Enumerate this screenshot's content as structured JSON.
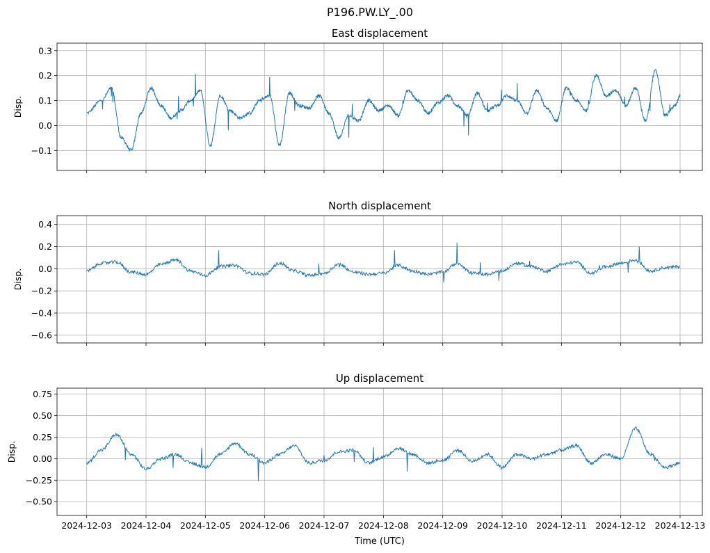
{
  "figure": {
    "suptitle": "P196.PW.LY_.00",
    "xlabel": "Time (UTC)",
    "line_color": "#1f77b4",
    "grid_color": "#b0b0b0"
  },
  "chart_data": [
    {
      "type": "line",
      "title": "East displacement",
      "ylabel": "Disp.",
      "xlabel": "",
      "grid": true,
      "xlim": [
        "2024-12-02T12:00",
        "2024-12-13T09:00"
      ],
      "ylim": [
        -0.18,
        0.33
      ],
      "yticks": [
        -0.1,
        0.0,
        0.1,
        0.2,
        0.3
      ],
      "ytick_labels": [
        "−0.1",
        "0.0",
        "0.1",
        "0.2",
        "0.3"
      ],
      "series": [
        {
          "x": [
            "2024-12-03T00:00",
            "2024-12-03T06:00",
            "2024-12-03T10:00",
            "2024-12-03T14:00",
            "2024-12-03T18:00",
            "2024-12-03T22:00",
            "2024-12-04T02:00",
            "2024-12-04T06:00",
            "2024-12-04T10:00",
            "2024-12-04T14:00",
            "2024-12-04T18:00",
            "2024-12-04T22:00",
            "2024-12-05T02:00",
            "2024-12-05T06:00",
            "2024-12-05T10:00",
            "2024-12-05T14:00",
            "2024-12-05T18:00",
            "2024-12-05T22:00",
            "2024-12-06T02:00",
            "2024-12-06T06:00",
            "2024-12-06T10:00",
            "2024-12-06T14:00",
            "2024-12-06T18:00",
            "2024-12-06T22:00",
            "2024-12-07T02:00",
            "2024-12-07T06:00",
            "2024-12-07T10:00",
            "2024-12-07T14:00",
            "2024-12-07T18:00",
            "2024-12-07T22:00",
            "2024-12-08T02:00",
            "2024-12-08T06:00",
            "2024-12-08T10:00",
            "2024-12-08T14:00",
            "2024-12-08T18:00",
            "2024-12-08T22:00",
            "2024-12-09T02:00",
            "2024-12-09T06:00",
            "2024-12-09T10:00",
            "2024-12-09T14:00",
            "2024-12-09T18:00",
            "2024-12-09T22:00",
            "2024-12-10T02:00",
            "2024-12-10T06:00",
            "2024-12-10T10:00",
            "2024-12-10T14:00",
            "2024-12-10T18:00",
            "2024-12-10T22:00",
            "2024-12-11T02:00",
            "2024-12-11T06:00",
            "2024-12-11T10:00",
            "2024-12-11T14:00",
            "2024-12-11T18:00",
            "2024-12-11T22:00",
            "2024-12-12T02:00",
            "2024-12-12T06:00",
            "2024-12-12T10:00",
            "2024-12-12T14:00",
            "2024-12-12T18:00",
            "2024-12-12T22:00",
            "2024-12-13T00:00"
          ],
          "y": [
            0.05,
            0.1,
            0.15,
            -0.05,
            -0.1,
            0.05,
            0.15,
            0.08,
            0.03,
            0.06,
            0.1,
            0.14,
            -0.08,
            0.12,
            0.06,
            0.03,
            0.05,
            0.1,
            0.12,
            -0.08,
            0.13,
            0.08,
            0.07,
            0.12,
            0.05,
            -0.05,
            0.04,
            0.02,
            0.1,
            0.06,
            0.08,
            0.04,
            0.14,
            0.1,
            0.05,
            0.09,
            0.12,
            0.08,
            0.04,
            0.13,
            0.06,
            0.08,
            0.12,
            0.1,
            0.05,
            0.14,
            0.07,
            0.02,
            0.15,
            0.1,
            0.06,
            0.2,
            0.12,
            0.14,
            0.08,
            0.15,
            0.02,
            0.22,
            0.04,
            0.08,
            0.12
          ]
        }
      ]
    },
    {
      "type": "line",
      "title": "North displacement",
      "ylabel": "Disp.",
      "xlabel": "",
      "grid": true,
      "xlim": [
        "2024-12-02T12:00",
        "2024-12-13T09:00"
      ],
      "ylim": [
        -0.67,
        0.48
      ],
      "yticks": [
        -0.6,
        -0.4,
        -0.2,
        0.0,
        0.2,
        0.4
      ],
      "ytick_labels": [
        "−0.6",
        "−0.4",
        "−0.2",
        "0.0",
        "0.2",
        "0.4"
      ],
      "series": [
        {
          "x": [
            "2024-12-03T00:00",
            "2024-12-03T06:00",
            "2024-12-03T12:00",
            "2024-12-03T18:00",
            "2024-12-04T00:00",
            "2024-12-04T06:00",
            "2024-12-04T12:00",
            "2024-12-04T18:00",
            "2024-12-05T00:00",
            "2024-12-05T06:00",
            "2024-12-05T12:00",
            "2024-12-05T18:00",
            "2024-12-06T00:00",
            "2024-12-06T06:00",
            "2024-12-06T12:00",
            "2024-12-06T18:00",
            "2024-12-07T00:00",
            "2024-12-07T06:00",
            "2024-12-07T12:00",
            "2024-12-07T18:00",
            "2024-12-08T00:00",
            "2024-12-08T06:00",
            "2024-12-08T12:00",
            "2024-12-08T18:00",
            "2024-12-09T00:00",
            "2024-12-09T06:00",
            "2024-12-09T12:00",
            "2024-12-09T18:00",
            "2024-12-10T00:00",
            "2024-12-10T06:00",
            "2024-12-10T12:00",
            "2024-12-10T18:00",
            "2024-12-11T00:00",
            "2024-12-11T06:00",
            "2024-12-11T12:00",
            "2024-12-11T18:00",
            "2024-12-12T00:00",
            "2024-12-12T06:00",
            "2024-12-12T12:00",
            "2024-12-12T18:00",
            "2024-12-13T00:00"
          ],
          "y": [
            -0.02,
            0.05,
            0.06,
            -0.03,
            -0.05,
            0.04,
            0.08,
            -0.02,
            -0.06,
            0.02,
            0.03,
            -0.04,
            -0.05,
            0.05,
            -0.02,
            -0.06,
            -0.04,
            0.04,
            -0.03,
            -0.05,
            -0.04,
            0.03,
            -0.02,
            -0.05,
            -0.03,
            0.05,
            -0.04,
            -0.05,
            -0.02,
            0.05,
            0.02,
            -0.02,
            0.04,
            0.06,
            -0.04,
            0.02,
            0.05,
            0.08,
            -0.02,
            0.01,
            0.02
          ]
        }
      ]
    },
    {
      "type": "line",
      "title": "Up displacement",
      "ylabel": "Disp.",
      "xlabel": "Time (UTC)",
      "grid": true,
      "xlim": [
        "2024-12-02T12:00",
        "2024-12-13T09:00"
      ],
      "ylim": [
        -0.66,
        0.82
      ],
      "yticks": [
        -0.5,
        -0.25,
        0.0,
        0.25,
        0.5,
        0.75
      ],
      "ytick_labels": [
        "−0.50",
        "−0.25",
        "0.00",
        "0.25",
        "0.50",
        "0.75"
      ],
      "xticks": [
        "2024-12-03",
        "2024-12-04",
        "2024-12-05",
        "2024-12-06",
        "2024-12-07",
        "2024-12-08",
        "2024-12-09",
        "2024-12-10",
        "2024-12-11",
        "2024-12-12",
        "2024-12-13"
      ],
      "series": [
        {
          "x": [
            "2024-12-03T00:00",
            "2024-12-03T06:00",
            "2024-12-03T12:00",
            "2024-12-03T18:00",
            "2024-12-04T00:00",
            "2024-12-04T06:00",
            "2024-12-04T12:00",
            "2024-12-04T18:00",
            "2024-12-05T00:00",
            "2024-12-05T06:00",
            "2024-12-05T12:00",
            "2024-12-05T18:00",
            "2024-12-06T00:00",
            "2024-12-06T06:00",
            "2024-12-06T12:00",
            "2024-12-06T18:00",
            "2024-12-07T00:00",
            "2024-12-07T06:00",
            "2024-12-07T12:00",
            "2024-12-07T18:00",
            "2024-12-08T00:00",
            "2024-12-08T06:00",
            "2024-12-08T12:00",
            "2024-12-08T18:00",
            "2024-12-09T00:00",
            "2024-12-09T06:00",
            "2024-12-09T12:00",
            "2024-12-09T18:00",
            "2024-12-10T00:00",
            "2024-12-10T06:00",
            "2024-12-10T12:00",
            "2024-12-10T18:00",
            "2024-12-11T00:00",
            "2024-12-11T06:00",
            "2024-12-11T12:00",
            "2024-12-11T18:00",
            "2024-12-12T00:00",
            "2024-12-12T06:00",
            "2024-12-12T12:00",
            "2024-12-12T18:00",
            "2024-12-13T00:00"
          ],
          "y": [
            -0.05,
            0.1,
            0.28,
            0.05,
            -0.12,
            0.0,
            0.05,
            -0.05,
            -0.1,
            0.05,
            0.18,
            0.05,
            -0.05,
            0.05,
            0.15,
            -0.05,
            -0.02,
            0.08,
            0.1,
            -0.05,
            0.02,
            0.12,
            0.05,
            -0.05,
            -0.02,
            0.1,
            -0.03,
            0.05,
            -0.1,
            0.05,
            0.0,
            0.05,
            0.1,
            0.15,
            -0.05,
            0.05,
            0.0,
            0.35,
            0.05,
            -0.1,
            -0.05
          ]
        }
      ]
    }
  ]
}
